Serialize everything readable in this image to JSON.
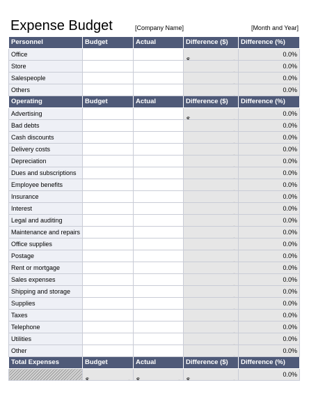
{
  "header": {
    "title": "Expense Budget",
    "company_placeholder": "[Company Name]",
    "period_placeholder": "[Month and Year]"
  },
  "columns": {
    "budget": "Budget",
    "actual": "Actual",
    "difference_dollar": "Difference ($)",
    "difference_pct": "Difference (%)"
  },
  "personnel": {
    "heading": "Personnel",
    "rows": [
      "Office",
      "Store",
      "Salespeople",
      "Others"
    ]
  },
  "operating": {
    "heading": "Operating",
    "rows": [
      "Advertising",
      "Bad debts",
      "Cash discounts",
      "Delivery costs",
      "Depreciation",
      "Dues and subscriptions",
      "Employee benefits",
      "Insurance",
      "Interest",
      "Legal and auditing",
      "Maintenance and repairs",
      "Office supplies",
      "Postage",
      "Rent or mortgage",
      "Sales expenses",
      "Shipping and storage",
      "Supplies",
      "Taxes",
      "Telephone",
      "Utilities",
      "Other"
    ]
  },
  "totals": {
    "heading": "Total  Expenses",
    "budget_value": "-",
    "actual_value": "-",
    "difference_dollar_value": "-",
    "difference_pct_value": "0.0%"
  },
  "cell_values": {
    "currency_symbol": "$",
    "dash": "-",
    "zero_pct": "0.0%"
  },
  "colors": {
    "header_bg": "#4f5a78",
    "label_bg": "#eef0f6",
    "calc_bg": "#e6e6e6"
  }
}
